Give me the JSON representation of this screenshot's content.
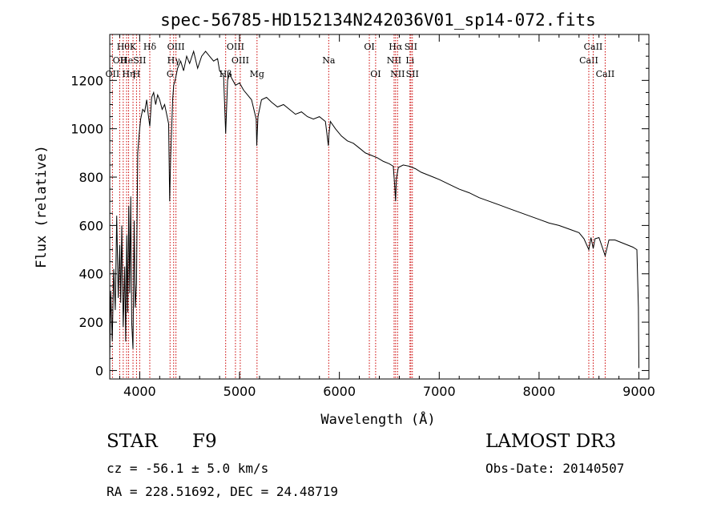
{
  "chart_data": {
    "type": "line",
    "title": "spec-56785-HD152134N242036V01_sp14-072.fits",
    "xlabel": "Wavelength (Å)",
    "ylabel": "Flux (relative)",
    "xlim": [
      3700,
      9100
    ],
    "ylim": [
      -35,
      1390
    ],
    "xticks": [
      4000,
      5000,
      6000,
      7000,
      8000,
      9000
    ],
    "xtick_labels": [
      "4000",
      "5000",
      "6000",
      "7000",
      "8000",
      "9000"
    ],
    "yticks": [
      0,
      200,
      400,
      600,
      800,
      1000,
      1200
    ],
    "ytick_labels": [
      "0",
      "200",
      "400",
      "600",
      "800",
      "1000",
      "1200"
    ],
    "series": [
      {
        "name": "spectrum",
        "x": [
          3700,
          3710,
          3725,
          3740,
          3755,
          3770,
          3785,
          3800,
          3810,
          3820,
          3835,
          3850,
          3860,
          3870,
          3880,
          3890,
          3900,
          3910,
          3920,
          3933,
          3945,
          3955,
          3968,
          3980,
          3995,
          4010,
          4030,
          4050,
          4070,
          4085,
          4101,
          4120,
          4140,
          4160,
          4180,
          4200,
          4225,
          4250,
          4275,
          4290,
          4300,
          4310,
          4320,
          4330,
          4340,
          4355,
          4380,
          4410,
          4440,
          4470,
          4500,
          4540,
          4580,
          4620,
          4660,
          4700,
          4740,
          4780,
          4800,
          4840,
          4861,
          4880,
          4900,
          4920,
          4960,
          5000,
          5040,
          5080,
          5120,
          5167,
          5172,
          5184,
          5220,
          5270,
          5320,
          5380,
          5440,
          5500,
          5560,
          5620,
          5680,
          5740,
          5800,
          5860,
          5890,
          5896,
          5910,
          5960,
          6020,
          6080,
          6140,
          6200,
          6260,
          6320,
          6380,
          6440,
          6500,
          6540,
          6555,
          6563,
          6570,
          6590,
          6640,
          6700,
          6760,
          6820,
          6880,
          6940,
          7000,
          7100,
          7200,
          7300,
          7400,
          7500,
          7600,
          7700,
          7800,
          7900,
          8000,
          8100,
          8200,
          8300,
          8400,
          8450,
          8498,
          8520,
          8542,
          8560,
          8600,
          8662,
          8700,
          8760,
          8820,
          8880,
          8940,
          8980,
          8995,
          9000
        ],
        "values": [
          50,
          330,
          120,
          420,
          250,
          640,
          300,
          520,
          280,
          600,
          180,
          430,
          120,
          560,
          240,
          680,
          320,
          720,
          200,
          90,
          620,
          260,
          360,
          900,
          980,
          1040,
          1080,
          1070,
          1120,
          1060,
          1010,
          1130,
          1150,
          1100,
          1140,
          1120,
          1080,
          1100,
          1050,
          1020,
          700,
          880,
          1000,
          1120,
          1180,
          1200,
          1250,
          1280,
          1240,
          1300,
          1270,
          1320,
          1250,
          1300,
          1320,
          1300,
          1280,
          1290,
          1240,
          1220,
          980,
          1200,
          1230,
          1210,
          1180,
          1190,
          1160,
          1140,
          1120,
          1040,
          930,
          1050,
          1120,
          1130,
          1110,
          1090,
          1100,
          1080,
          1060,
          1070,
          1050,
          1040,
          1050,
          1030,
          930,
          980,
          1030,
          1000,
          970,
          950,
          940,
          920,
          900,
          890,
          880,
          865,
          855,
          845,
          760,
          700,
          790,
          840,
          850,
          845,
          835,
          820,
          810,
          800,
          790,
          770,
          750,
          735,
          715,
          700,
          685,
          670,
          655,
          640,
          625,
          610,
          600,
          585,
          570,
          545,
          500,
          550,
          505,
          545,
          550,
          475,
          540,
          540,
          530,
          520,
          510,
          500,
          260,
          10
        ]
      }
    ],
    "line_markers": [
      {
        "x": 3727,
        "label": "OII",
        "row": 3
      },
      {
        "x": 3800,
        "label": "OII",
        "row": 1
      },
      {
        "x": 3835,
        "label": "Hθ",
        "row": 0
      },
      {
        "x": 3869,
        "label": "He",
        "row": 1
      },
      {
        "x": 3889,
        "label": "Hη",
        "row": 2
      },
      {
        "x": 3933,
        "label": "K",
        "row": 0
      },
      {
        "x": 3968,
        "label": "H",
        "row": 2
      },
      {
        "x": 4000,
        "label": "SII",
        "row": 1
      },
      {
        "x": 4101,
        "label": "Hδ",
        "row": 0
      },
      {
        "x": 4304,
        "label": "G",
        "row": 2
      },
      {
        "x": 4340,
        "label": "Hγ",
        "row": 1
      },
      {
        "x": 4363,
        "label": "OIII",
        "row": 0
      },
      {
        "x": 4861,
        "label": "Hβ",
        "row": 2
      },
      {
        "x": 4959,
        "label": "OIII",
        "row": 0
      },
      {
        "x": 5007,
        "label": "OIII",
        "row": 1
      },
      {
        "x": 5175,
        "label": "Mg",
        "row": 2
      },
      {
        "x": 5893,
        "label": "Na",
        "row": 1
      },
      {
        "x": 6300,
        "label": "OI",
        "row": 0
      },
      {
        "x": 6363,
        "label": "OI",
        "row": 2
      },
      {
        "x": 6548,
        "label": "NII",
        "row": 1
      },
      {
        "x": 6563,
        "label": "Hα",
        "row": 0
      },
      {
        "x": 6583,
        "label": "NII",
        "row": 2
      },
      {
        "x": 6707,
        "label": "Li",
        "row": 1
      },
      {
        "x": 6716,
        "label": "SII",
        "row": 0
      },
      {
        "x": 6731,
        "label": "SII",
        "row": 2
      },
      {
        "x": 8498,
        "label": "CaII",
        "row": 1
      },
      {
        "x": 8542,
        "label": "CaII",
        "row": 0
      },
      {
        "x": 8662,
        "label": "CaII",
        "row": 2
      }
    ],
    "marker_color": "#cc0000",
    "line_color": "#000000"
  },
  "info": {
    "object_class": "STAR",
    "subclass": "F9",
    "survey": "LAMOST DR3",
    "cz": "cz = -56.1 ± 5.0 km/s",
    "obs_date": "Obs-Date: 20140507",
    "coords": "RA = 228.51692, DEC =  24.48719"
  }
}
